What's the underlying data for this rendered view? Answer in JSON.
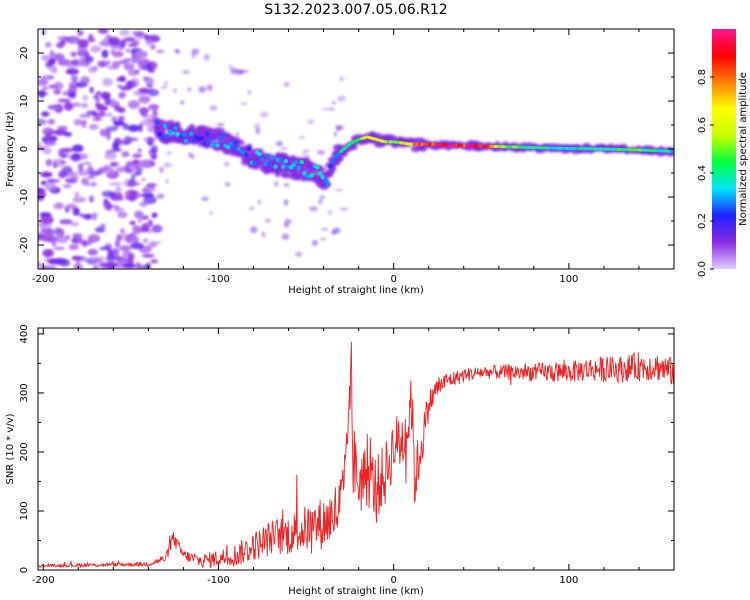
{
  "figure_title": "S132.2023.007.05.06.R12",
  "colors": {
    "snr_line": "#ee2222",
    "axis": "#000000",
    "colorbar_stops": [
      "#e0ccff",
      "#8a2be2",
      "#2020ff",
      "#00e5ff",
      "#00ff40",
      "#c8ff00",
      "#ffff00",
      "#ff8000",
      "#ff0000",
      "#ff1493"
    ]
  },
  "chart_data": [
    {
      "type": "heatmap",
      "title": "",
      "xlabel": "Height of straight line (km)",
      "ylabel": "Frequency (Hz)",
      "xlim": [
        -203,
        160
      ],
      "ylim": [
        -25,
        25
      ],
      "xticks": [
        -200,
        -100,
        0,
        100
      ],
      "yticks": [
        -20,
        -10,
        0,
        10,
        20
      ],
      "ridge": {
        "description": "frequency of the dominant spectral line vs height",
        "x": [
          -135,
          -128,
          -120,
          -110,
          -100,
          -92,
          -85,
          -78,
          -70,
          -62,
          -55,
          -48,
          -42,
          -38,
          -35,
          -30,
          -25,
          -20,
          -15,
          -10,
          -5,
          0,
          10,
          20,
          30,
          40,
          50,
          60,
          80,
          100,
          120,
          140,
          160
        ],
        "y": [
          4,
          3.5,
          3,
          2.5,
          2,
          0.5,
          -1,
          -2,
          -3,
          -3.5,
          -4,
          -4.5,
          -5.5,
          -6.5,
          -3,
          -0.5,
          1,
          2,
          2.5,
          2,
          1.5,
          1.5,
          1,
          1,
          0.8,
          0.7,
          0.6,
          0.5,
          0.3,
          0.1,
          0,
          -0.2,
          -0.5
        ],
        "amplitude": [
          0.25,
          0.3,
          0.3,
          0.25,
          0.3,
          0.3,
          0.25,
          0.3,
          0.3,
          0.3,
          0.35,
          0.35,
          0.35,
          0.3,
          0.25,
          0.35,
          0.4,
          0.55,
          0.65,
          0.6,
          0.55,
          0.5,
          0.7,
          0.85,
          0.95,
          0.95,
          0.9,
          0.55,
          0.4,
          0.35,
          0.4,
          0.45,
          0.35
        ]
      },
      "noise_region": {
        "x_range": [
          -203,
          -135
        ],
        "y_range": [
          -25,
          25
        ],
        "amplitude": 0.1
      },
      "colorbar": {
        "label": "Normalized spectral amplitude",
        "range": [
          0,
          1
        ],
        "ticks": [
          "0.0",
          "0.2",
          "0.4",
          "0.6",
          "0.8"
        ]
      }
    },
    {
      "type": "line",
      "title": "",
      "xlabel": "Height of straight line (km)",
      "ylabel": "SNR (10 * v/v)",
      "xlim": [
        -203,
        160
      ],
      "ylim": [
        0,
        410
      ],
      "xticks": [
        -200,
        -100,
        0,
        100
      ],
      "yticks": [
        0,
        100,
        200,
        300,
        400
      ],
      "series": [
        {
          "name": "SNR",
          "x": [
            -203,
            -180,
            -160,
            -140,
            -130,
            -126,
            -120,
            -110,
            -100,
            -90,
            -80,
            -70,
            -60,
            -50,
            -40,
            -35,
            -30,
            -27,
            -25,
            -23,
            -20,
            -15,
            -10,
            -5,
            0,
            5,
            8,
            10,
            12,
            15,
            20,
            25,
            30,
            40,
            50,
            60,
            70,
            80,
            90,
            100,
            110,
            120,
            130,
            140,
            150,
            160
          ],
          "y": [
            7,
            8,
            9,
            10,
            20,
            55,
            25,
            15,
            20,
            25,
            40,
            55,
            60,
            70,
            80,
            90,
            110,
            160,
            330,
            180,
            150,
            160,
            140,
            160,
            210,
            220,
            240,
            300,
            150,
            200,
            280,
            310,
            320,
            330,
            335,
            335,
            335,
            335,
            335,
            335,
            340,
            340,
            340,
            345,
            345,
            335
          ],
          "noise": [
            2,
            3,
            3,
            4,
            8,
            12,
            10,
            12,
            15,
            20,
            25,
            30,
            35,
            40,
            45,
            50,
            60,
            70,
            60,
            70,
            60,
            55,
            55,
            55,
            50,
            55,
            60,
            60,
            50,
            45,
            25,
            20,
            15,
            12,
            12,
            12,
            15,
            15,
            18,
            18,
            20,
            22,
            22,
            25,
            25,
            25
          ]
        }
      ]
    }
  ]
}
